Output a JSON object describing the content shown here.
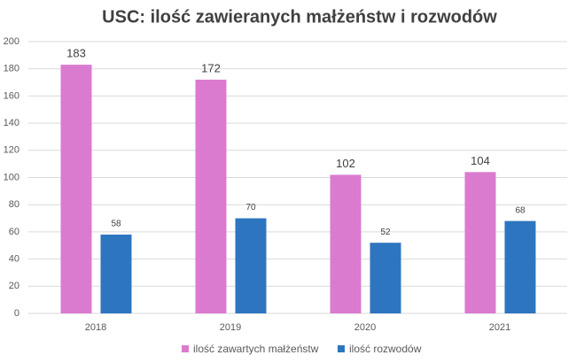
{
  "chart_data": {
    "type": "bar",
    "title": "USC: ilość zawieranych małżeństw i rozwodów",
    "categories": [
      "2018",
      "2019",
      "2020",
      "2021"
    ],
    "series": [
      {
        "name": "ilość zawartych małżeństw",
        "color": "#da7bd0",
        "values": [
          183,
          172,
          102,
          104
        ]
      },
      {
        "name": "ilość rozwodów",
        "color": "#2e75c0",
        "values": [
          58,
          70,
          52,
          68
        ]
      }
    ],
    "ylim": [
      0,
      200
    ],
    "yticks": [
      0,
      20,
      40,
      60,
      80,
      100,
      120,
      140,
      160,
      180,
      200
    ],
    "grid": true,
    "legend": "bottom"
  }
}
